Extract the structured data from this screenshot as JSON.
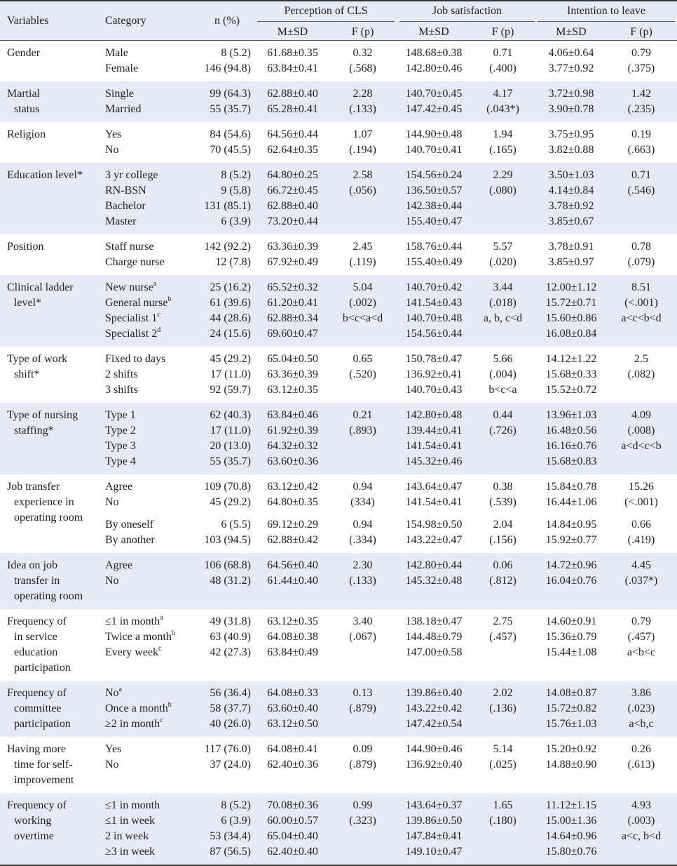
{
  "header": {
    "variables": "Variables",
    "category": "Category",
    "n": "n (%)",
    "groups": [
      {
        "title": "Perception of CLS",
        "m": "M±SD",
        "f": "F (p)"
      },
      {
        "title": "Job  satisfaction",
        "m": "M±SD",
        "f": "F (p)"
      },
      {
        "title": "Intention to leave",
        "m": "M±SD",
        "f": "F (p)"
      }
    ]
  },
  "groups": [
    {
      "variable": [
        "Gender"
      ],
      "blocks": [
        [
          {
            "category": "Male",
            "n": "8 (5.2)",
            "cells": [
              "61.68±0.35",
              "0.32",
              "148.68±0.38",
              "0.71",
              "4.06±0.64",
              "0.79"
            ]
          },
          {
            "category": "Female",
            "n": "146 (94.8)",
            "cells": [
              "63.84±0.41",
              "(.568)",
              "142.80±0.46",
              "(.400)",
              "3.77±0.92",
              "(.375)"
            ]
          }
        ]
      ]
    },
    {
      "variable": [
        "Martial",
        "status"
      ],
      "blocks": [
        [
          {
            "category": "Single",
            "n": "99 (64.3)",
            "cells": [
              "62.88±0.40",
              "2.28",
              "140.70±0.45",
              "4.17",
              "3.72±0.98",
              "1.42"
            ]
          },
          {
            "category": "Married",
            "n": "55 (35.7)",
            "cells": [
              "65.28±0.41",
              "(.133)",
              "147.42±0.45",
              "(.043*)",
              "3.90±0.78",
              "(.235)"
            ]
          }
        ]
      ]
    },
    {
      "variable": [
        "Religion"
      ],
      "blocks": [
        [
          {
            "category": "Yes",
            "n": "84 (54.6)",
            "cells": [
              "64.56±0.44",
              "1.07",
              "144.90±0.48",
              "1.94",
              "3.75±0.95",
              "0.19"
            ]
          },
          {
            "category": "No",
            "n": "70 (45.5)",
            "cells": [
              "62.64±0.35",
              "(.194)",
              "140.70±0.41",
              "(.165)",
              "3.82±0.88",
              "(.663)"
            ]
          }
        ]
      ]
    },
    {
      "variable": [
        "Education level*"
      ],
      "blocks": [
        [
          {
            "category": "3 yr college",
            "n": "8 (5.2)",
            "cells": [
              "64.80±0.25",
              "2.58",
              "154.56±0.24",
              "2.29",
              "3.50±1.03",
              "0.71"
            ]
          },
          {
            "category": "RN-BSN",
            "n": "9 (5.8)",
            "cells": [
              "66.72±0.45",
              "(.056)",
              "136.50±0.57",
              "(.080)",
              "4.14±0.84",
              "(.546)"
            ]
          },
          {
            "category": "Bachelor",
            "n": "131 (85.1)",
            "cells": [
              "62.88±0.40",
              null,
              "142.38±0.44",
              null,
              "3.78±0.92",
              null
            ]
          },
          {
            "category": "Master",
            "n": "6 (3.9)",
            "cells": [
              "73.20±0.44",
              null,
              "155.40±0.47",
              null,
              "3.85±0.67",
              null
            ]
          }
        ]
      ]
    },
    {
      "variable": [
        "Position"
      ],
      "blocks": [
        [
          {
            "category": "Staff nurse",
            "n": "142 (92.2)",
            "cells": [
              "63.36±0.39",
              "2.45",
              "158.76±0.44",
              "5.57",
              "3.78±0.91",
              "0.78"
            ]
          },
          {
            "category": "Charge nurse",
            "n": "12 (7.8)",
            "cells": [
              "67.92±0.49",
              "(.119)",
              "155.40±0.49",
              "(.020)",
              "3.85±0.97",
              "(.079)"
            ]
          }
        ]
      ]
    },
    {
      "variable": [
        "Clinical ladder",
        "level*"
      ],
      "blocks": [
        [
          {
            "category": "New nurse",
            "sup": "a",
            "n": "25 (16.2)",
            "cells": [
              "65.52±0.32",
              "5.04",
              "140.70±0.42",
              "3.44",
              "12.00±1.12",
              "8.51"
            ]
          },
          {
            "category": "General nurse",
            "sup": "b",
            "n": "61 (39.6)",
            "cells": [
              "61.20±0.41",
              "(.002)",
              "141.54±0.43",
              "(.018)",
              "15.72±0.71",
              "(<.001)"
            ]
          },
          {
            "category": "Specialist 1",
            "sup": "c",
            "n": "44 (28.6)",
            "cells": [
              "62.88±0.34",
              "b<c<a<d",
              "140.70±0.48",
              "a, b, c<d",
              "15.60±0.86",
              "a<c<b<d"
            ]
          },
          {
            "category": "Specialist 2",
            "sup": "d",
            "n": "24 (15.6)",
            "cells": [
              "69.60±0.47",
              null,
              "154.56±0.44",
              null,
              "16.08±0.84",
              null
            ]
          }
        ]
      ]
    },
    {
      "variable": [
        "Type of work",
        "shift*"
      ],
      "blocks": [
        [
          {
            "category": "Fixed to days",
            "n": "45 (29.2)",
            "cells": [
              "65.04±0.50",
              "0.65",
              "150.78±0.47",
              "5.66",
              "14.12±1.22",
              "2.5"
            ]
          },
          {
            "category": "2 shifts",
            "n": "17 (11.0)",
            "cells": [
              "63.36±0.39",
              "(.520)",
              "136.92±0.41",
              "(.004)",
              "15.68±0.33",
              "(.082)"
            ]
          },
          {
            "category": "3 shifts",
            "n": "92 (59.7)",
            "cells": [
              "63.12±0.35",
              null,
              "140.70±0.43",
              "b<c<a",
              "15.52±0.72",
              null
            ]
          }
        ]
      ]
    },
    {
      "variable": [
        "Type of nursing",
        "staffing*"
      ],
      "blocks": [
        [
          {
            "category": "Type 1",
            "n": "62 (40.3)",
            "cells": [
              "63.84±0.46",
              "0.21",
              "142.80±0.48",
              "0.44",
              "13.96±1.03",
              "4.09"
            ]
          },
          {
            "category": "Type 2",
            "n": "17 (11.0)",
            "cells": [
              "61.92±0.39",
              "(.893)",
              "139.44±0.41",
              "(.726)",
              "16.48±0.56",
              "(.008)"
            ]
          },
          {
            "category": "Type 3",
            "n": "20 (13.0)",
            "cells": [
              "64.32±0.32",
              null,
              "141.54±0.41",
              null,
              "16.16±0.76",
              "a<d<c<b"
            ]
          },
          {
            "category": "Type 4",
            "n": "55 (35.7)",
            "cells": [
              "63.60±0.36",
              null,
              "145.32±0.46",
              null,
              "15.68±0.83",
              null
            ]
          }
        ]
      ]
    },
    {
      "variable": [
        "Job transfer",
        "experience in",
        "operating room"
      ],
      "blocks": [
        [
          {
            "category": "Agree",
            "n": "109 (70.8)",
            "cells": [
              "63.12±0.42",
              "0.94",
              "143.64±0.47",
              "0.38",
              "15.84±0.78",
              "15.26"
            ]
          },
          {
            "category": "No",
            "n": "45 (29.2)",
            "cells": [
              "64.80±0.35",
              "(334)",
              "141.54±0.41",
              "(.539)",
              "16.44±1.06",
              "(<.001)"
            ]
          }
        ],
        [
          {
            "category": "By oneself",
            "n": "6 (5.5)",
            "cells": [
              "69.12±0.29",
              "0.94",
              "154.98±0.50",
              "2.04",
              "14.84±0.95",
              "0.66"
            ]
          },
          {
            "category": "By another",
            "n": "103 (94.5)",
            "cells": [
              "62.88±0.42",
              "(.334)",
              "143.22±0.47",
              "(.156)",
              "15.92±0.77",
              "(.419)"
            ]
          }
        ]
      ]
    },
    {
      "variable": [
        "Idea on job",
        "transfer in",
        "operating room"
      ],
      "blocks": [
        [
          {
            "category": "Agree",
            "n": "106 (68.8)",
            "cells": [
              "64.56±0.40",
              "2.30",
              "142.80±0.44",
              "0.06",
              "14.72±0.96",
              "4.45"
            ]
          },
          {
            "category": "No",
            "n": "48 (31.2)",
            "cells": [
              "61.44±0.40",
              "(.133)",
              "145.32±0.48",
              "(.812)",
              "16.04±0.76",
              "(.037*)"
            ]
          }
        ]
      ]
    },
    {
      "variable": [
        "Frequency of",
        "in service",
        "education",
        "participation"
      ],
      "blocks": [
        [
          {
            "category": "≤1 in month",
            "sup": "a",
            "n": "49 (31.8)",
            "cells": [
              "63.12±0.35",
              "3.40",
              "138.18±0.47",
              "2.75",
              "14.60±0.91",
              "0.79"
            ]
          },
          {
            "category": "Twice a month",
            "sup": "b",
            "n": "63 (40.9)",
            "cells": [
              "64.08±0.38",
              "(.067)",
              "144.48±0.79",
              "(.457)",
              "15.36±0.79",
              "(.457)"
            ]
          },
          {
            "category": "Every week",
            "sup": "c",
            "n": "42 (27.3)",
            "cells": [
              "63.84±0.49",
              null,
              "147.00±0.58",
              null,
              "15.44±1.08",
              "a<b<c"
            ]
          }
        ]
      ]
    },
    {
      "variable": [
        "Frequency of",
        "committee",
        "participation"
      ],
      "blocks": [
        [
          {
            "category": "No",
            "sup": "a",
            "n": "56 (36.4)",
            "cells": [
              "64.08±0.33",
              "0.13",
              "139.86±0.40",
              "2.02",
              "14.08±0.87",
              "3.86"
            ]
          },
          {
            "category": "Once a month",
            "sup": "b",
            "n": "58 (37.7)",
            "cells": [
              "63.60±0.40",
              "(.879)",
              "143.22±0.42",
              "(.136)",
              "15.72±0.82",
              "(.023)"
            ]
          },
          {
            "category": "≥2 in month",
            "sup": "c",
            "n": "40 (26.0)",
            "cells": [
              "63.12±0.50",
              null,
              "147.42±0.54",
              null,
              "15.76±1.03",
              "a<b,c"
            ]
          }
        ]
      ]
    },
    {
      "variable": [
        "Having more",
        "time for self-",
        "improvement"
      ],
      "blocks": [
        [
          {
            "category": "Yes",
            "n": "117 (76.0)",
            "cells": [
              "64.08±0.41",
              "0.09",
              "144.90±0.46",
              "5.14",
              "15.20±0.92",
              "0.26"
            ]
          },
          {
            "category": "No",
            "n": "37 (24.0)",
            "cells": [
              "62.40±0.36",
              "(.879)",
              "136.92±0.40",
              "(.025)",
              "14.88±0.90",
              "(.613)"
            ]
          }
        ]
      ]
    },
    {
      "variable": [
        "Frequency of",
        "working",
        "overtime"
      ],
      "blocks": [
        [
          {
            "category": "≤1 in month",
            "n": "8 (5.2)",
            "cells": [
              "70.08±0.36",
              "0.99",
              "143.64±0.37",
              "1.65",
              "11.12±1.15",
              "4.93"
            ]
          },
          {
            "category": "≤1 in week",
            "n": "6 (3.9)",
            "cells": [
              "60.00±0.57",
              "(.323)",
              "139.86±0.50",
              "(.180)",
              "15.00±1.36",
              "(.003)"
            ]
          },
          {
            "category": "2 in week",
            "n": "53 (34.4)",
            "cells": [
              "65.04±0.40",
              null,
              "147.84±0.41",
              null,
              "14.64±0.96",
              "a<c, b<d"
            ]
          },
          {
            "category": "≥3 in week",
            "n": "87 (56.5)",
            "cells": [
              "62.40±0.40",
              null,
              "149.10±0.47",
              null,
              "15.80±0.76",
              null
            ]
          }
        ]
      ]
    }
  ]
}
